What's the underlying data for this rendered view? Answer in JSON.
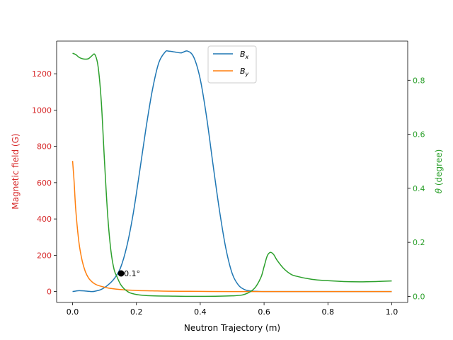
{
  "chart_data": {
    "type": "line",
    "xlabel": "Neutron Trajectory (m)",
    "ylabel_left": "Magnetic field (G)",
    "ylabel_right": "θ (degree)",
    "xlim": [
      -0.05,
      1.05
    ],
    "ylim_left": [
      -60,
      1380
    ],
    "ylim_right": [
      -0.0225,
      0.945
    ],
    "x_ticks": [
      "0.0",
      "0.2",
      "0.4",
      "0.6",
      "0.8",
      "1.0"
    ],
    "x_tick_values": [
      0.0,
      0.2,
      0.4,
      0.6,
      0.8,
      1.0
    ],
    "y_left_ticks": [
      "0",
      "200",
      "400",
      "600",
      "800",
      "1000",
      "1200"
    ],
    "y_left_tick_values": [
      0,
      200,
      400,
      600,
      800,
      1000,
      1200
    ],
    "y_right_ticks": [
      "0.0",
      "0.2",
      "0.4",
      "0.6",
      "0.8"
    ],
    "y_right_tick_values": [
      0.0,
      0.2,
      0.4,
      0.6,
      0.8
    ],
    "grid": false,
    "legend_position": "top-center",
    "colors": {
      "bx": "#1f77b4",
      "by": "#ff7f0e",
      "theta": "#2ca02c",
      "left_axis": "#d62728",
      "right_axis": "#2ca02c",
      "marker": "#000000"
    },
    "series": [
      {
        "name": "Bx",
        "label_main": "B",
        "label_sub": "x",
        "axis": "left",
        "x": [
          0.0,
          0.02,
          0.04,
          0.06,
          0.07,
          0.09,
          0.11,
          0.13,
          0.15,
          0.17,
          0.19,
          0.21,
          0.23,
          0.25,
          0.27,
          0.29,
          0.3,
          0.32,
          0.34,
          0.36,
          0.38,
          0.4,
          0.42,
          0.44,
          0.46,
          0.48,
          0.5,
          0.52,
          0.54,
          0.56,
          0.58,
          0.6,
          0.65,
          0.7,
          0.8,
          0.9,
          1.0
        ],
        "values": [
          0,
          5,
          3,
          0,
          2,
          12,
          35,
          70,
          130,
          250,
          430,
          660,
          900,
          1110,
          1260,
          1320,
          1325,
          1320,
          1315,
          1325,
          1290,
          1170,
          960,
          700,
          450,
          240,
          100,
          35,
          10,
          3,
          1,
          0,
          0,
          0,
          0,
          0,
          0
        ]
      },
      {
        "name": "By",
        "label_main": "B",
        "label_sub": "y",
        "axis": "left",
        "x": [
          0.0,
          0.005,
          0.01,
          0.02,
          0.03,
          0.04,
          0.05,
          0.06,
          0.07,
          0.08,
          0.1,
          0.12,
          0.15,
          0.2,
          0.25,
          0.3,
          0.4,
          0.5,
          0.7,
          1.0
        ],
        "values": [
          720,
          600,
          450,
          270,
          170,
          110,
          75,
          55,
          42,
          34,
          24,
          17,
          11,
          6,
          4,
          2,
          1,
          0,
          0,
          0
        ]
      },
      {
        "name": "θ",
        "axis": "right",
        "x": [
          0.0,
          0.01,
          0.02,
          0.03,
          0.04,
          0.05,
          0.06,
          0.07,
          0.08,
          0.09,
          0.1,
          0.11,
          0.12,
          0.13,
          0.14,
          0.15,
          0.16,
          0.17,
          0.18,
          0.2,
          0.22,
          0.25,
          0.3,
          0.4,
          0.5,
          0.54,
          0.57,
          0.59,
          0.6,
          0.61,
          0.62,
          0.63,
          0.64,
          0.66,
          0.68,
          0.7,
          0.75,
          0.8,
          0.85,
          0.9,
          0.95,
          1.0
        ],
        "values": [
          0.9,
          0.895,
          0.885,
          0.88,
          0.878,
          0.88,
          0.89,
          0.895,
          0.85,
          0.72,
          0.5,
          0.3,
          0.17,
          0.1,
          0.07,
          0.045,
          0.03,
          0.02,
          0.013,
          0.007,
          0.004,
          0.002,
          0.001,
          0.0,
          0.002,
          0.008,
          0.03,
          0.07,
          0.11,
          0.15,
          0.163,
          0.155,
          0.135,
          0.105,
          0.085,
          0.075,
          0.063,
          0.058,
          0.055,
          0.054,
          0.055,
          0.057
        ]
      }
    ],
    "annotation": {
      "x": 0.152,
      "y": 100,
      "text": "0.1°"
    }
  }
}
